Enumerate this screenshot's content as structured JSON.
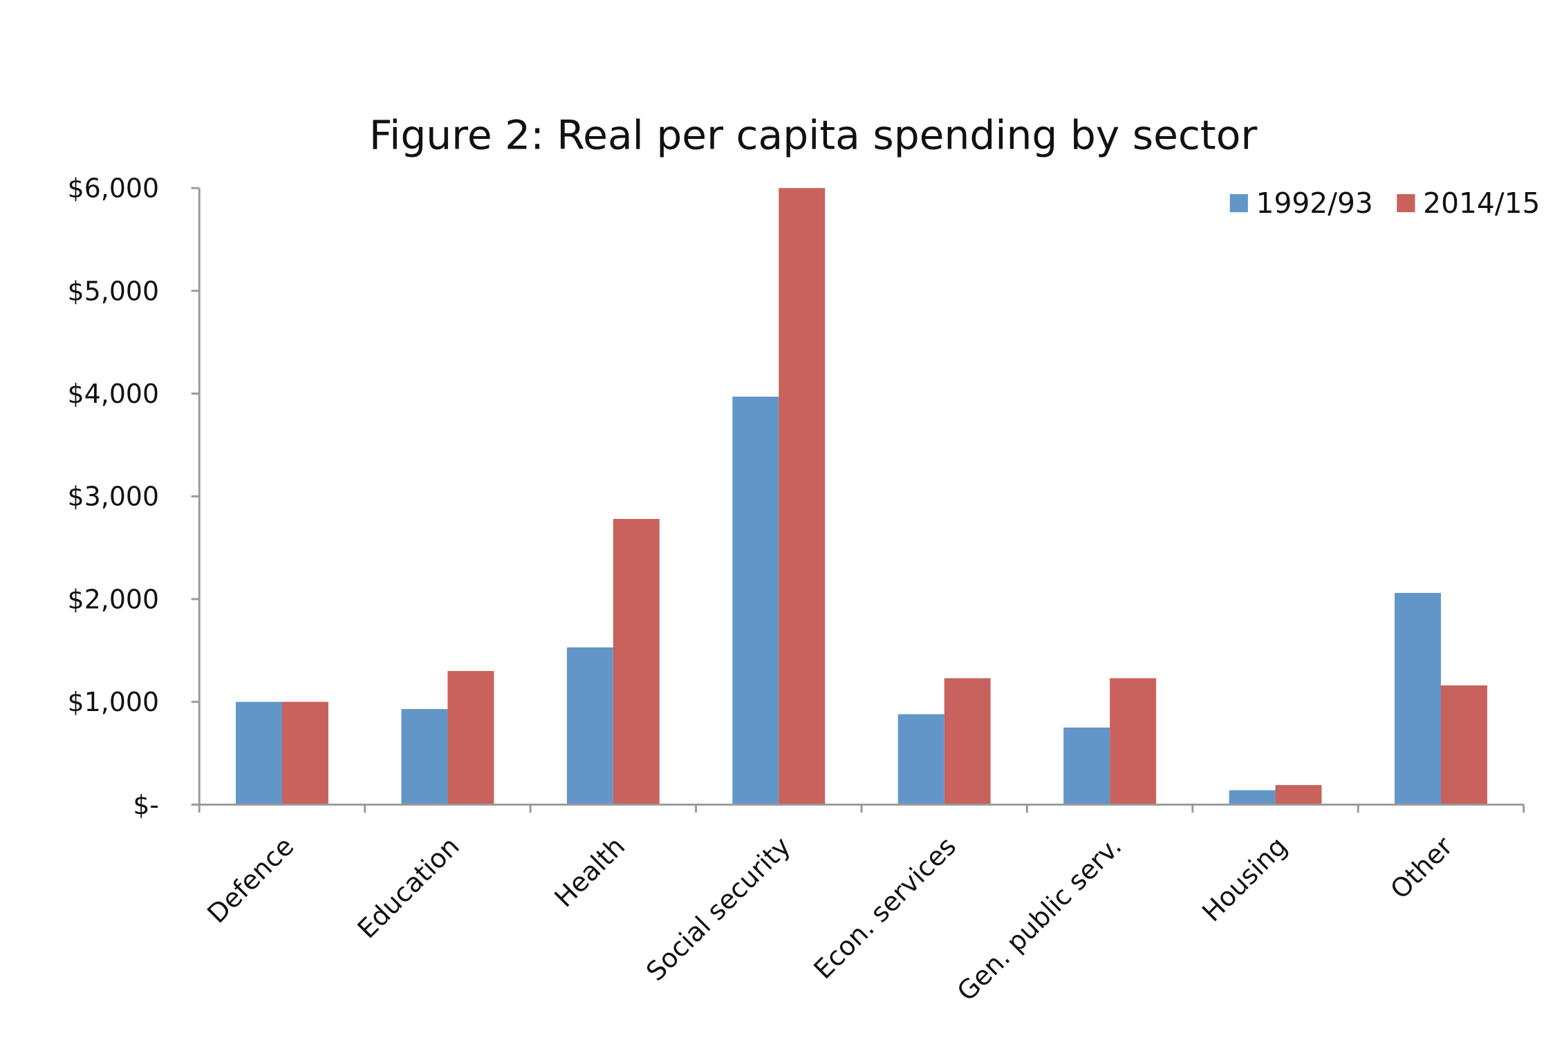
{
  "chart_data": {
    "type": "bar",
    "title": "Figure 2: Real per capita spending by sector",
    "categories": [
      "Defence",
      "Education",
      "Health",
      "Social security",
      "Econ. services",
      "Gen. public serv.",
      "Housing",
      "Other"
    ],
    "series": [
      {
        "name": "1992/93",
        "color": "#6296c8",
        "values": [
          1000,
          930,
          1530,
          3970,
          880,
          750,
          140,
          2060
        ]
      },
      {
        "name": "2014/15",
        "color": "#c9615c",
        "values": [
          1000,
          1300,
          2780,
          6000,
          1230,
          1230,
          190,
          1160
        ]
      }
    ],
    "ylim": [
      0,
      6000
    ],
    "yticks": [
      {
        "value": 0,
        "label": "$-"
      },
      {
        "value": 1000,
        "label": "$1,000"
      },
      {
        "value": 2000,
        "label": "$2,000"
      },
      {
        "value": 3000,
        "label": "$3,000"
      },
      {
        "value": 4000,
        "label": "$4,000"
      },
      {
        "value": 5000,
        "label": "$5,000"
      },
      {
        "value": 6000,
        "label": "$6,000"
      }
    ],
    "legend": "top-right",
    "grid": false
  }
}
